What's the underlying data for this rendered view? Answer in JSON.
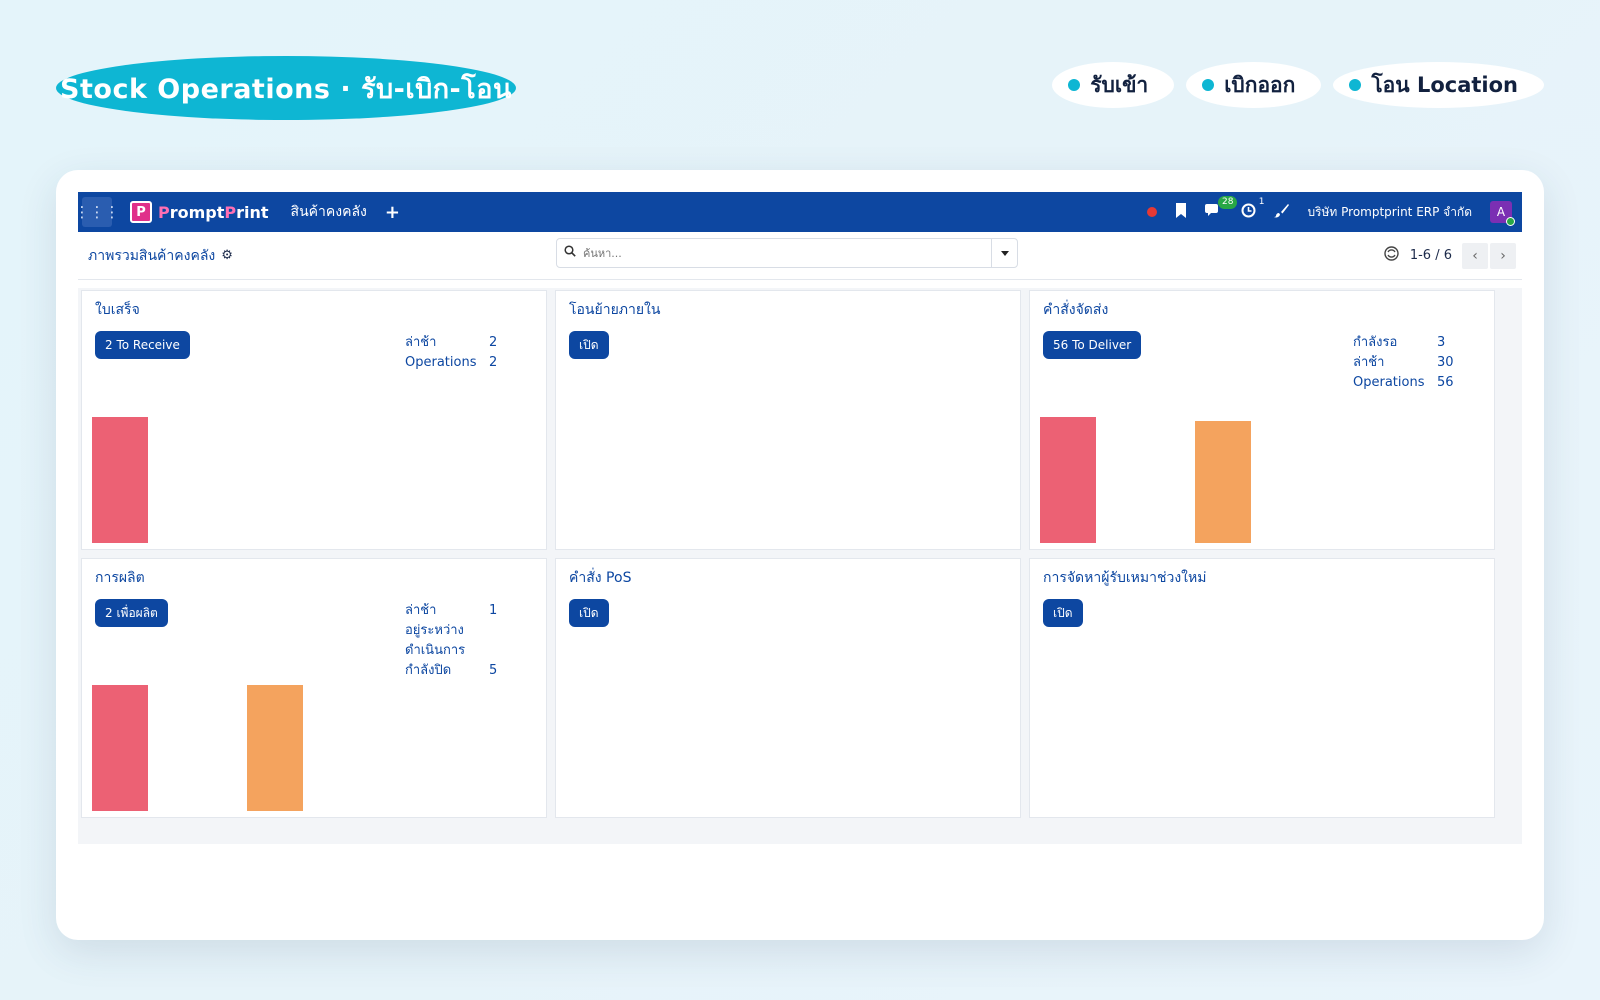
{
  "hero": {
    "title": "Stock Operations · รับ-เบิก-โอน"
  },
  "chips": [
    {
      "label": "รับเข้า"
    },
    {
      "label": "เบิกออก"
    },
    {
      "label": "โอน Location"
    }
  ],
  "navbar": {
    "apps_icon": "⋮⋮⋮",
    "brand_p1": "P",
    "brand_rest1": "rompt",
    "brand_p2": "P",
    "brand_rest2": "rint",
    "menu": "สินค้าคงคลัง",
    "plus": "+",
    "messages_count": "28",
    "activity_count": "1",
    "company": "บริษัท Promptprint ERP จำกัด",
    "avatar": "A"
  },
  "control": {
    "breadcrumb": "ภาพรวมสินค้าคงคลัง",
    "search_placeholder": "ค้นหา...",
    "pager": "1-6 / 6"
  },
  "colors": {
    "late": "#ec6174",
    "waiting": "#f4a35e",
    "primary": "#0d47a1",
    "accent": "#0eb6d3"
  },
  "cards": [
    {
      "title": "ใบเสร็จ",
      "button": "2 To Receive",
      "stats": [
        {
          "label": "ล่าช้า",
          "value": "2"
        },
        {
          "label": "Operations",
          "value": "2"
        }
      ],
      "bars": [
        {
          "kind": "late",
          "level": 1.0
        }
      ]
    },
    {
      "title": "โอนย้ายภายใน",
      "button": "เปิด",
      "stats": [],
      "bars": []
    },
    {
      "title": "คำสั่งจัดส่ง",
      "button": "56 To Deliver",
      "stats": [
        {
          "label": "กำลังรอ",
          "value": "3"
        },
        {
          "label": "ล่าช้า",
          "value": "30"
        },
        {
          "label": "Operations",
          "value": "56"
        }
      ],
      "bars": [
        {
          "kind": "late",
          "level": 1.0
        },
        {
          "kind": "waiting",
          "level": 0.97
        }
      ]
    },
    {
      "title": "การผลิต",
      "button": "2 เพื่อผลิต",
      "stats": [
        {
          "label": "ล่าช้า",
          "value": "1"
        },
        {
          "label": "อยู่ระหว่างดำเนินการ",
          "value": ""
        },
        {
          "label": "กำลังปิด",
          "value": "5"
        }
      ],
      "bars": [
        {
          "kind": "late",
          "level": 1.0
        },
        {
          "kind": "waiting",
          "level": 1.0
        }
      ]
    },
    {
      "title": "คำสั่ง PoS",
      "button": "เปิด",
      "stats": [],
      "bars": []
    },
    {
      "title": "การจัดหาผู้รับเหมาช่วงใหม่",
      "button": "เปิด",
      "stats": [],
      "bars": []
    }
  ]
}
